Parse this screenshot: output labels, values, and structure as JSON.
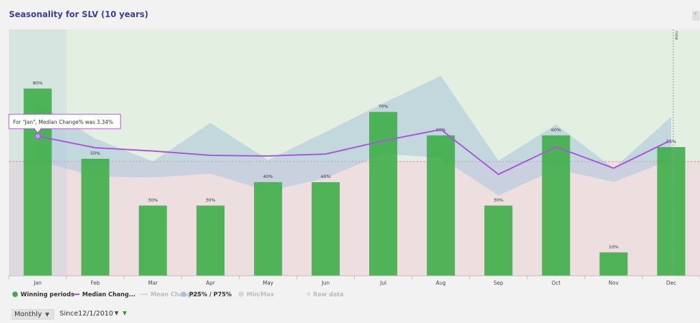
{
  "title": "Seasonality for SLV (10 years)",
  "legend": [
    {
      "label": "Winning periods",
      "kind": "dot",
      "color": "#3fae49",
      "dim": false
    },
    {
      "label": "Median Chang...",
      "kind": "line",
      "color": "#a855e0",
      "dim": false
    },
    {
      "label": "Mean Change%",
      "kind": "line",
      "color": "#d9d9d9",
      "dim": true
    },
    {
      "label": "P25% / P75%",
      "kind": "dot",
      "color": "#a9c4da",
      "dim": false
    },
    {
      "label": "Min/Max",
      "kind": "dot",
      "color": "#d6d6d6",
      "dim": true
    },
    {
      "label": "Raw data",
      "kind": "dot-small",
      "color": "#d9d9d9",
      "dim": true
    }
  ],
  "controls": {
    "period": "Monthly",
    "since_label": "Since",
    "since_value": "12/1/2010"
  },
  "icons": {
    "dropdown": "chevron-down-icon",
    "filter": "filter-icon",
    "expand": "expand-icon"
  },
  "colors": {
    "title": "#3c3ea3",
    "bar": "#3fae49",
    "median": "#a855e0",
    "band": "#a9c4da",
    "positive_zone": "#e3efe1",
    "negative_zone": "#eddfe0",
    "highlight_zone": "#dde8ec"
  },
  "chart_data": {
    "type": "bar",
    "categories": [
      "Jan",
      "Feb",
      "Mar",
      "Apr",
      "May",
      "Jun",
      "Jul",
      "Aug",
      "Sep",
      "Oct",
      "Nov",
      "Dec"
    ],
    "series": [
      {
        "name": "Winning periods",
        "values": [
          80,
          50,
          30,
          30,
          40,
          40,
          70,
          60,
          30,
          60,
          10,
          55
        ],
        "labels": [
          "80%",
          "50%",
          "30%",
          "30%",
          "40%",
          "40%",
          "70%",
          "60%",
          "30%",
          "60%",
          "10%",
          "55%"
        ]
      }
    ],
    "median_change": [
      3.34,
      1.82,
      1.39,
      0.81,
      0.73,
      0.98,
      2.73,
      4.23,
      -1.7,
      1.94,
      -0.88,
      2.83
    ],
    "p25_p75": [
      [
        0.1,
        7.7
      ],
      [
        -2.0,
        3.0
      ],
      [
        -2.1,
        0.0
      ],
      [
        -1.6,
        5.1
      ],
      [
        -3.9,
        0.2
      ],
      [
        -2.2,
        3.9
      ],
      [
        1.0,
        7.7
      ],
      [
        0.5,
        11.3
      ],
      [
        -4.5,
        0.1
      ],
      [
        -1.0,
        4.9
      ],
      [
        -2.7,
        -0.9
      ],
      [
        0.2,
        5.9
      ]
    ],
    "tooltip": "For \"Jan\", Median Change% was 3.34%",
    "now_label": "now",
    "highlighted_category": "Jan",
    "ylim": [
      -5,
      10.5
    ]
  }
}
